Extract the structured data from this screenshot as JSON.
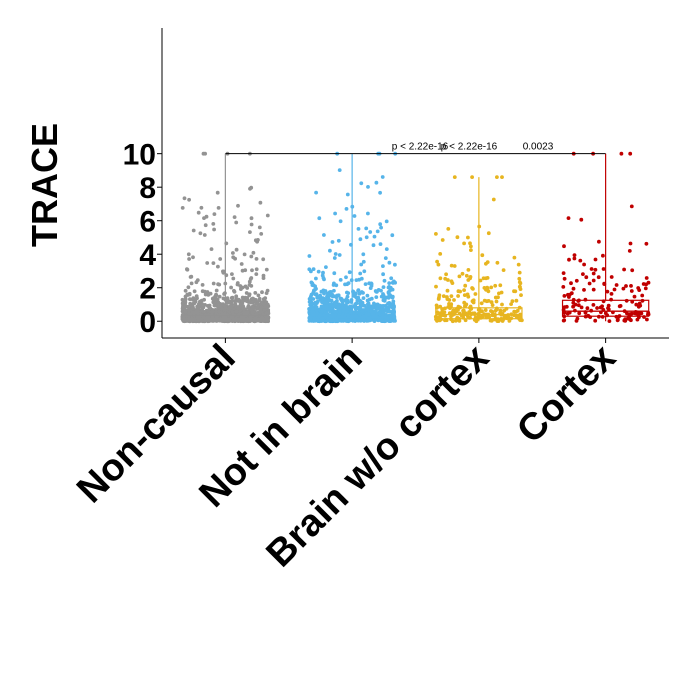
{
  "chart_data": {
    "type": "box+jitter",
    "ylabel": "TRACE",
    "xlabel": "",
    "ylim": [
      -1.0,
      17.5
    ],
    "yticks": [
      0,
      2,
      4,
      6,
      8,
      10
    ],
    "categories": [
      "Non-causal",
      "Not in brain",
      "Brain w/o cortex",
      "Cortex"
    ],
    "groups": [
      {
        "name": "Non-causal",
        "color": "#939393",
        "box": {
          "q1": 0.05,
          "median": 0.15,
          "q3": 0.35,
          "whisker_low": 0.0,
          "whisker_high": 10.0
        },
        "n_points": 1400,
        "max": 10.0
      },
      {
        "name": "Not in brain",
        "color": "#56b4e9",
        "box": {
          "q1": 0.03,
          "median": 0.2,
          "q3": 0.5,
          "whisker_low": 0.0,
          "whisker_high": 10.0
        },
        "n_points": 1000,
        "max": 10.0
      },
      {
        "name": "Brain w/o cortex",
        "color": "#e7b520",
        "box": {
          "q1": 0.15,
          "median": 0.4,
          "q3": 0.8,
          "whisker_low": 0.0,
          "whisker_high": 8.6
        },
        "n_points": 260,
        "max": 8.6
      },
      {
        "name": "Cortex",
        "color": "#c00000",
        "box": {
          "q1": 0.3,
          "median": 0.6,
          "q3": 1.25,
          "whisker_low": 0.0,
          "whisker_high": 10.0
        },
        "n_points": 150,
        "max": 10.0
      }
    ],
    "comparisons": [
      {
        "from": 0,
        "to": 3,
        "y": 10.0,
        "labels": [
          "p < 2.22e-16",
          "p < 2.22e-16",
          "0.0023"
        ]
      }
    ]
  }
}
